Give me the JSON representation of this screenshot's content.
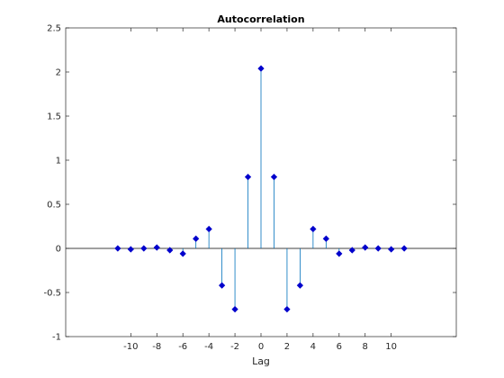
{
  "chart_data": {
    "type": "stem",
    "title": "Autocorrelation",
    "xlabel": "Lag",
    "ylabel": "",
    "xlim": [
      -15,
      15
    ],
    "ylim": [
      -1,
      2.5
    ],
    "x_ticks": [
      -10,
      -8,
      -6,
      -4,
      -2,
      0,
      2,
      4,
      6,
      8,
      10
    ],
    "y_ticks": [
      -1,
      -0.5,
      0,
      0.5,
      1,
      1.5,
      2,
      2.5
    ],
    "grid": false,
    "legend": "none",
    "series": [
      {
        "lags": [
          -11,
          -10,
          -9,
          -8,
          -7,
          -6,
          -5,
          -4,
          -3,
          -2,
          -1,
          0,
          1,
          2,
          3,
          4,
          5,
          6,
          7,
          8,
          9,
          10,
          11
        ],
        "values": [
          0.0,
          -0.01,
          0.0,
          0.01,
          -0.02,
          -0.06,
          0.11,
          0.22,
          -0.42,
          -0.69,
          0.81,
          2.04,
          0.81,
          -0.69,
          -0.42,
          0.22,
          0.11,
          -0.06,
          -0.02,
          0.01,
          0.0,
          -0.01,
          0.0
        ],
        "stem_color": "#0072BD",
        "marker_color": "#0000CC",
        "marker": "diamond"
      }
    ],
    "baseline": 0,
    "baseline_color": "#000000"
  }
}
